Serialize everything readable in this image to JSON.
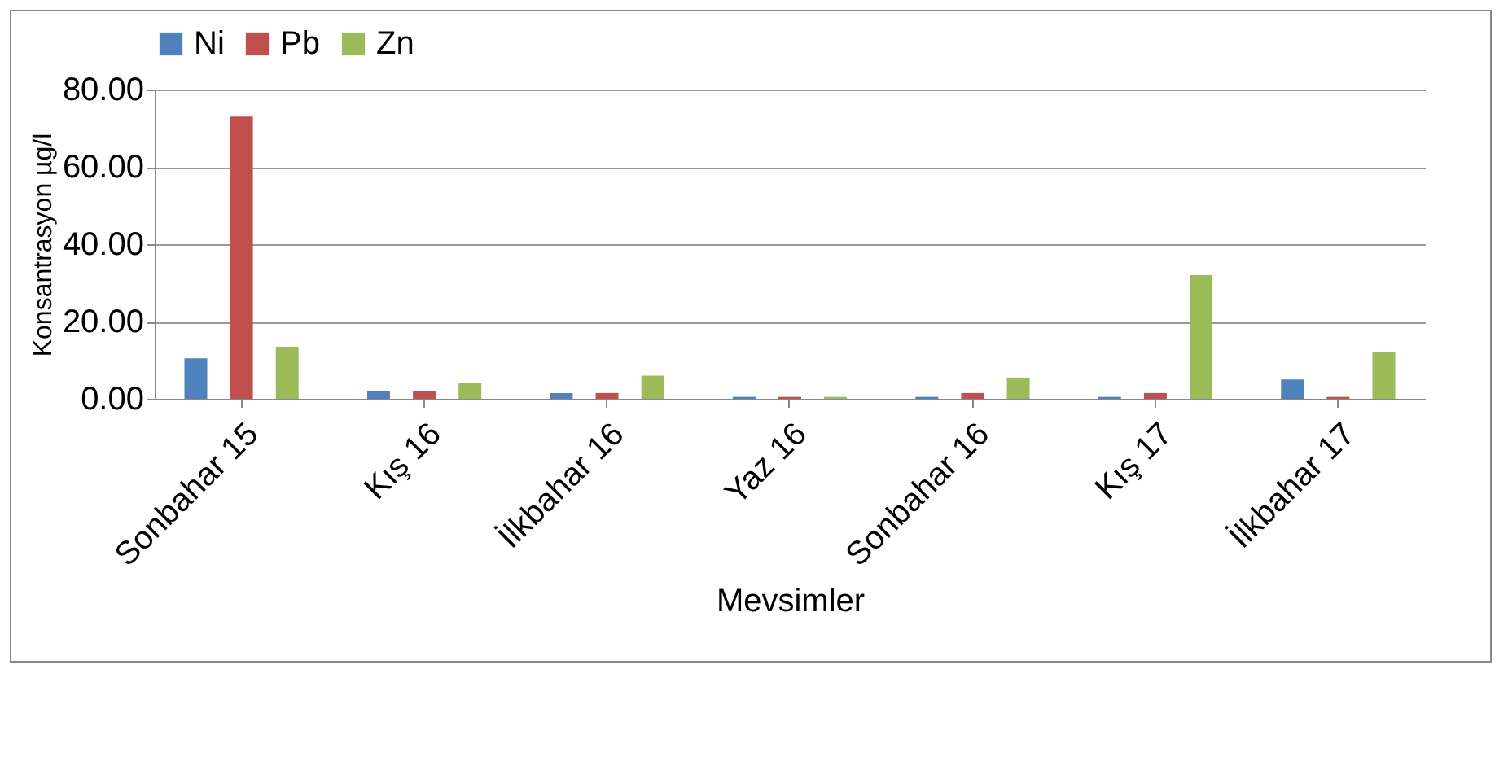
{
  "chart_data": {
    "type": "bar",
    "xlabel": "Mevsimler",
    "ylabel": "Konsantrasyon µg/l",
    "categories": [
      "Sonbahar 15",
      "Kış 16",
      "İlkbahar 16",
      "Yaz 16",
      "Sonbahar 16",
      "Kış 17",
      "İlkbahar 17"
    ],
    "series": [
      {
        "name": "Ni",
        "color": "#4f81bd",
        "values": [
          10.5,
          2,
          1.5,
          0.5,
          0.5,
          0.5,
          5
        ]
      },
      {
        "name": "Pb",
        "color": "#c0504d",
        "values": [
          73,
          2,
          1.5,
          0.5,
          1.5,
          1.5,
          0.5
        ]
      },
      {
        "name": "Zn",
        "color": "#9bbb59",
        "values": [
          13.5,
          4,
          6,
          0.5,
          5.5,
          32,
          12
        ]
      }
    ],
    "ylim": [
      0,
      80
    ],
    "yticks": [
      {
        "value": 0,
        "label": "0.00"
      },
      {
        "value": 20,
        "label": "20.00"
      },
      {
        "value": 40,
        "label": "40.00"
      },
      {
        "value": 60,
        "label": "60.00"
      },
      {
        "value": 80,
        "label": "80.00"
      }
    ],
    "grid": "y",
    "legend": "top"
  }
}
